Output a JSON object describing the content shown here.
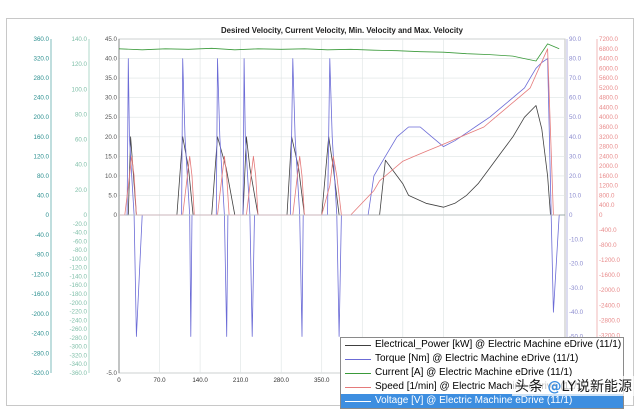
{
  "chart_data": {
    "type": "line",
    "title": "Desired Velocity, Current Velocity, Min. Velocity and Max. Velocity",
    "xlim": [
      0,
      770
    ],
    "x_ticks": [
      "0",
      "70.0",
      "140.0",
      "210.0",
      "280.0",
      "350.0",
      "420.0",
      "490.0",
      "560.0"
    ],
    "axes": {
      "current": {
        "color": "#2a8f8f",
        "range": [
          -320,
          360
        ],
        "ticks": [
          "360.0",
          "320.0",
          "280.0",
          "240.0",
          "200.0",
          "160.0",
          "120.0",
          "80.0",
          "40.0",
          "0",
          "-40.0",
          "-80.0",
          "-120.0",
          "-160.0",
          "-200.0",
          "-240.0",
          "-280.0",
          "-320.0"
        ]
      },
      "power": {
        "color": "#7fbfa8",
        "range": [
          -360,
          140
        ],
        "ticks": [
          "140.0",
          "120.0",
          "100.0",
          "80.0",
          "60.0",
          "40.0",
          "20.0",
          "0",
          "-20.0",
          "-40.0",
          "-60.0",
          "-80.0",
          "-100.0",
          "-120.0",
          "-140.0",
          "-160.0",
          "-180.0",
          "-200.0",
          "-220.0",
          "-240.0",
          "-260.0",
          "-280.0",
          "-300.0",
          "-320.0",
          "-340.0",
          "-360.0"
        ]
      },
      "voltage": {
        "color": "#555555",
        "range": [
          -5,
          45
        ],
        "ticks": [
          "45.0",
          "40.0",
          "35.0",
          "30.0",
          "25.0",
          "20.0",
          "15.0",
          "10.0",
          "5.0",
          "0",
          "-5.0"
        ]
      },
      "torque": {
        "color": "#8c8ccf",
        "range": [
          -65,
          90
        ],
        "ticks": [
          "90.0",
          "80.0",
          "70.0",
          "60.0",
          "50.0",
          "40.0",
          "30.0",
          "20.0",
          "10.0",
          "0",
          "-10.0",
          "-20.0",
          "-30.0",
          "-40.0",
          "-50.0",
          "-60.0"
        ]
      },
      "speed": {
        "color": "#e88a8a",
        "range": [
          -4200,
          7200
        ],
        "ticks": [
          "7200.0",
          "6800.0",
          "6400.0",
          "6000.0",
          "5600.0",
          "5200.0",
          "4800.0",
          "4400.0",
          "4000.0",
          "3600.0",
          "3200.0",
          "2800.0",
          "2400.0",
          "2000.0",
          "1600.0",
          "1200.0",
          "800.0",
          "400.0",
          "0",
          "-400.0",
          "-800.0",
          "-1200.0",
          "-1600.0",
          "-2000.0",
          "-2400.0",
          "-2800.0",
          "-3200.0",
          "-3600.0",
          "-4000.0"
        ]
      }
    },
    "series": [
      {
        "name": "Electrical_Power [kW] @ Electric Machine eDrive (11/1)",
        "color": "#404040",
        "axis": "voltage",
        "x": [
          0,
          10,
          16,
          20,
          25,
          30,
          40,
          50,
          60,
          70,
          100,
          110,
          120,
          128,
          140,
          150,
          160,
          170,
          185,
          200,
          214,
          220,
          226,
          240,
          250,
          260,
          270,
          290,
          298,
          310,
          320,
          330,
          340,
          350,
          362,
          370,
          380,
          390,
          400,
          410,
          420,
          430,
          440,
          450,
          460,
          470,
          480,
          490,
          500,
          530,
          560,
          580,
          600,
          620,
          640,
          660,
          680,
          700,
          720,
          730,
          740,
          745,
          760
        ],
        "y": [
          0,
          0,
          0,
          20,
          10,
          0,
          0,
          0,
          0,
          0,
          0,
          20,
          12,
          0,
          0,
          0,
          0,
          20,
          12,
          0,
          0,
          20,
          12,
          0,
          0,
          0,
          0,
          0,
          20,
          12,
          0,
          0,
          0,
          0,
          20,
          12,
          0,
          0,
          0,
          0,
          0,
          0,
          0,
          0,
          14,
          12,
          10,
          8,
          5,
          3,
          2,
          3,
          5,
          8,
          12,
          16,
          20,
          25,
          28,
          22,
          10,
          0,
          0
        ]
      },
      {
        "name": "Torque [Nm] @ Electric Machine eDrive (11/1)",
        "color": "#6b6bd6",
        "axis": "torque",
        "x": [
          0,
          10,
          14,
          16,
          18,
          22,
          26,
          30,
          40,
          80,
          100,
          108,
          110,
          114,
          118,
          122,
          124,
          126,
          160,
          168,
          170,
          174,
          178,
          182,
          186,
          188,
          208,
          214,
          216,
          218,
          222,
          226,
          230,
          234,
          236,
          270,
          278,
          290,
          296,
          300,
          304,
          308,
          312,
          316,
          318,
          360,
          364,
          368,
          372,
          376,
          380,
          384,
          386,
          430,
          440,
          450,
          460,
          470,
          480,
          500,
          520,
          540,
          560,
          580,
          600,
          620,
          640,
          660,
          680,
          700,
          710,
          720,
          730,
          740,
          750,
          760
        ],
        "y": [
          0,
          0,
          0,
          80,
          40,
          20,
          0,
          -50,
          0,
          0,
          0,
          0,
          80,
          40,
          20,
          0,
          -50,
          0,
          0,
          0,
          80,
          40,
          20,
          0,
          -50,
          0,
          0,
          0,
          80,
          40,
          20,
          0,
          -50,
          0,
          0,
          0,
          0,
          0,
          0,
          80,
          40,
          20,
          0,
          -50,
          0,
          0,
          80,
          40,
          20,
          0,
          -50,
          0,
          0,
          0,
          20,
          25,
          30,
          35,
          40,
          45,
          45,
          40,
          35,
          38,
          42,
          46,
          50,
          55,
          60,
          65,
          70,
          75,
          78,
          80,
          -40,
          0
        ]
      },
      {
        "name": "Current [A] @ Electric Machine eDrive (11/1)",
        "color": "#3a9a3a",
        "axis": "current",
        "x": [
          0,
          40,
          80,
          120,
          160,
          200,
          240,
          280,
          320,
          360,
          400,
          440,
          480,
          520,
          560,
          600,
          640,
          680,
          700,
          720,
          740,
          760
        ],
        "y": [
          340,
          338,
          340,
          339,
          341,
          338,
          340,
          339,
          340,
          338,
          339,
          337,
          336,
          334,
          333,
          330,
          328,
          325,
          320,
          315,
          350,
          340
        ]
      },
      {
        "name": "Speed [1/min] @ Electric Machine eDrive (11/1)",
        "color": "#e57a7a",
        "axis": "speed",
        "x": [
          0,
          10,
          16,
          22,
          26,
          30,
          40,
          60,
          100,
          110,
          116,
          122,
          126,
          130,
          150,
          170,
          176,
          182,
          186,
          190,
          210,
          220,
          226,
          232,
          236,
          240,
          270,
          290,
          300,
          306,
          312,
          316,
          320,
          350,
          364,
          370,
          376,
          380,
          384,
          400,
          440,
          450,
          470,
          490,
          510,
          530,
          550,
          570,
          590,
          610,
          630,
          650,
          670,
          690,
          710,
          725,
          740,
          750,
          760
        ],
        "y": [
          0,
          0,
          1200,
          2400,
          1600,
          0,
          0,
          0,
          0,
          0,
          1200,
          2400,
          1600,
          0,
          0,
          0,
          1200,
          2400,
          1600,
          0,
          0,
          0,
          1200,
          2400,
          1600,
          0,
          0,
          0,
          0,
          1200,
          2400,
          1600,
          0,
          0,
          1200,
          2400,
          1600,
          800,
          0,
          0,
          1000,
          1400,
          1800,
          2200,
          2400,
          2600,
          2800,
          3000,
          3200,
          3400,
          3600,
          4000,
          4400,
          4800,
          5200,
          6000,
          6800,
          0,
          0
        ]
      },
      {
        "name": "Voltage [V] @ Electric Machine eDrive (11/1)",
        "color": "#cccccc",
        "axis": "voltage",
        "x": [
          0,
          760
        ],
        "y": [
          0,
          0
        ]
      }
    ],
    "legend_position": "bottom-right",
    "grid": true
  },
  "watermark": {
    "prefix": "头条 ",
    "at": "@",
    "handle": "LY说新能源"
  }
}
